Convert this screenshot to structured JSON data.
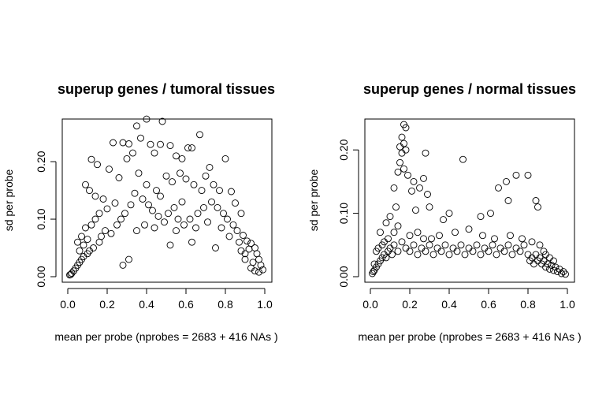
{
  "chart_data": [
    {
      "type": "scatter",
      "title": "superup genes / tumoral tissues",
      "xlabel": "mean per probe (nprobes = 2683 + 416 NAs )",
      "ylabel": "sd per probe",
      "xlim": [
        0,
        1
      ],
      "ylim": [
        0,
        0.27
      ],
      "xticks": [
        0.0,
        0.2,
        0.4,
        0.6,
        0.8,
        1.0
      ],
      "xtick_labels": [
        "0.0",
        "0.2",
        "0.4",
        "0.6",
        "0.8",
        "1.0"
      ],
      "yticks": [
        0.0,
        0.1,
        0.2
      ],
      "ytick_labels": [
        "0.00",
        "0.10",
        "0.20"
      ],
      "marker": "open-circle",
      "grid": false,
      "series": [
        {
          "points": [
            [
              0.4,
              0.274
            ],
            [
              0.48,
              0.27
            ],
            [
              0.35,
              0.262
            ],
            [
              0.67,
              0.247
            ],
            [
              0.37,
              0.241
            ],
            [
              0.61,
              0.224
            ],
            [
              0.63,
              0.224
            ],
            [
              0.23,
              0.233
            ],
            [
              0.28,
              0.233
            ],
            [
              0.31,
              0.231
            ],
            [
              0.42,
              0.23
            ],
            [
              0.52,
              0.228
            ],
            [
              0.47,
              0.23
            ],
            [
              0.8,
              0.205
            ],
            [
              0.12,
              0.204
            ],
            [
              0.15,
              0.195
            ],
            [
              0.55,
              0.21
            ],
            [
              0.44,
              0.215
            ],
            [
              0.3,
              0.205
            ],
            [
              0.72,
              0.19
            ],
            [
              0.58,
              0.205
            ],
            [
              0.33,
              0.215
            ],
            [
              0.21,
              0.187
            ],
            [
              0.26,
              0.172
            ],
            [
              0.09,
              0.16
            ],
            [
              0.11,
              0.15
            ],
            [
              0.14,
              0.14
            ],
            [
              0.18,
              0.135
            ],
            [
              0.24,
              0.128
            ],
            [
              0.2,
              0.118
            ],
            [
              0.36,
              0.18
            ],
            [
              0.4,
              0.16
            ],
            [
              0.45,
              0.15
            ],
            [
              0.5,
              0.175
            ],
            [
              0.53,
              0.165
            ],
            [
              0.57,
              0.18
            ],
            [
              0.6,
              0.17
            ],
            [
              0.64,
              0.16
            ],
            [
              0.68,
              0.15
            ],
            [
              0.7,
              0.175
            ],
            [
              0.74,
              0.16
            ],
            [
              0.77,
              0.15
            ],
            [
              0.83,
              0.148
            ],
            [
              0.85,
              0.128
            ],
            [
              0.88,
              0.11
            ],
            [
              0.86,
              0.08
            ],
            [
              0.89,
              0.072
            ],
            [
              0.91,
              0.062
            ],
            [
              0.93,
              0.058
            ],
            [
              0.95,
              0.05
            ],
            [
              0.96,
              0.04
            ],
            [
              0.97,
              0.03
            ],
            [
              0.98,
              0.02
            ],
            [
              0.99,
              0.012
            ],
            [
              0.92,
              0.048
            ],
            [
              0.9,
              0.04
            ],
            [
              0.94,
              0.025
            ],
            [
              0.87,
              0.06
            ],
            [
              0.84,
              0.09
            ],
            [
              0.81,
              0.1
            ],
            [
              0.79,
              0.11
            ],
            [
              0.76,
              0.12
            ],
            [
              0.73,
              0.13
            ],
            [
              0.69,
              0.12
            ],
            [
              0.66,
              0.11
            ],
            [
              0.62,
              0.1
            ],
            [
              0.59,
              0.09
            ],
            [
              0.56,
              0.1
            ],
            [
              0.54,
              0.12
            ],
            [
              0.51,
              0.11
            ],
            [
              0.49,
              0.095
            ],
            [
              0.46,
              0.105
            ],
            [
              0.43,
              0.115
            ],
            [
              0.41,
              0.125
            ],
            [
              0.38,
              0.135
            ],
            [
              0.34,
              0.145
            ],
            [
              0.32,
              0.125
            ],
            [
              0.29,
              0.11
            ],
            [
              0.27,
              0.1
            ],
            [
              0.25,
              0.09
            ],
            [
              0.22,
              0.075
            ],
            [
              0.19,
              0.08
            ],
            [
              0.17,
              0.07
            ],
            [
              0.16,
              0.06
            ],
            [
              0.13,
              0.05
            ],
            [
              0.11,
              0.045
            ],
            [
              0.1,
              0.04
            ],
            [
              0.08,
              0.035
            ],
            [
              0.07,
              0.03
            ],
            [
              0.06,
              0.025
            ],
            [
              0.05,
              0.02
            ],
            [
              0.04,
              0.015
            ],
            [
              0.03,
              0.01
            ],
            [
              0.02,
              0.006
            ],
            [
              0.015,
              0.004
            ],
            [
              0.01,
              0.003
            ],
            [
              0.05,
              0.06
            ],
            [
              0.07,
              0.07
            ],
            [
              0.09,
              0.085
            ],
            [
              0.06,
              0.045
            ],
            [
              0.08,
              0.055
            ],
            [
              0.1,
              0.065
            ],
            [
              0.12,
              0.09
            ],
            [
              0.14,
              0.1
            ],
            [
              0.16,
              0.11
            ],
            [
              0.28,
              0.02
            ],
            [
              0.31,
              0.03
            ],
            [
              0.52,
              0.055
            ],
            [
              0.63,
              0.06
            ],
            [
              0.75,
              0.05
            ],
            [
              0.58,
              0.13
            ],
            [
              0.47,
              0.14
            ],
            [
              0.39,
              0.09
            ],
            [
              0.35,
              0.08
            ],
            [
              0.44,
              0.085
            ],
            [
              0.55,
              0.08
            ],
            [
              0.65,
              0.085
            ],
            [
              0.71,
              0.095
            ],
            [
              0.78,
              0.085
            ],
            [
              0.82,
              0.07
            ],
            [
              0.88,
              0.045
            ],
            [
              0.9,
              0.03
            ],
            [
              0.93,
              0.015
            ],
            [
              0.95,
              0.01
            ],
            [
              0.97,
              0.008
            ]
          ]
        }
      ]
    },
    {
      "type": "scatter",
      "title": "superup genes / normal tissues",
      "xlabel": "mean per probe (nprobes = 2683 + 416 NAs )",
      "ylabel": "sd per probe",
      "xlim": [
        0,
        1
      ],
      "ylim": [
        0,
        0.245
      ],
      "xticks": [
        0.0,
        0.2,
        0.4,
        0.6,
        0.8,
        1.0
      ],
      "xtick_labels": [
        "0.0",
        "0.2",
        "0.4",
        "0.6",
        "0.8",
        "1.0"
      ],
      "yticks": [
        0.0,
        0.1,
        0.2
      ],
      "ytick_labels": [
        "0.00",
        "0.10",
        "0.20"
      ],
      "marker": "open-circle",
      "grid": false,
      "series": [
        {
          "points": [
            [
              0.17,
              0.24
            ],
            [
              0.18,
              0.235
            ],
            [
              0.16,
              0.22
            ],
            [
              0.17,
              0.21
            ],
            [
              0.15,
              0.205
            ],
            [
              0.18,
              0.2
            ],
            [
              0.16,
              0.195
            ],
            [
              0.28,
              0.195
            ],
            [
              0.47,
              0.185
            ],
            [
              0.15,
              0.18
            ],
            [
              0.17,
              0.17
            ],
            [
              0.14,
              0.165
            ],
            [
              0.19,
              0.16
            ],
            [
              0.27,
              0.155
            ],
            [
              0.22,
              0.15
            ],
            [
              0.12,
              0.14
            ],
            [
              0.21,
              0.135
            ],
            [
              0.25,
              0.14
            ],
            [
              0.29,
              0.13
            ],
            [
              0.65,
              0.14
            ],
            [
              0.69,
              0.15
            ],
            [
              0.74,
              0.16
            ],
            [
              0.8,
              0.16
            ],
            [
              0.84,
              0.12
            ],
            [
              0.85,
              0.11
            ],
            [
              0.7,
              0.12
            ],
            [
              0.61,
              0.1
            ],
            [
              0.56,
              0.095
            ],
            [
              0.4,
              0.1
            ],
            [
              0.37,
              0.09
            ],
            [
              0.3,
              0.11
            ],
            [
              0.23,
              0.105
            ],
            [
              0.13,
              0.11
            ],
            [
              0.1,
              0.095
            ],
            [
              0.08,
              0.085
            ],
            [
              0.05,
              0.07
            ],
            [
              0.03,
              0.04
            ],
            [
              0.02,
              0.02
            ],
            [
              0.01,
              0.005
            ],
            [
              0.015,
              0.008
            ],
            [
              0.02,
              0.01
            ],
            [
              0.03,
              0.015
            ],
            [
              0.04,
              0.02
            ],
            [
              0.05,
              0.025
            ],
            [
              0.06,
              0.03
            ],
            [
              0.07,
              0.035
            ],
            [
              0.08,
              0.03
            ],
            [
              0.09,
              0.04
            ],
            [
              0.1,
              0.045
            ],
            [
              0.11,
              0.035
            ],
            [
              0.12,
              0.05
            ],
            [
              0.14,
              0.04
            ],
            [
              0.16,
              0.055
            ],
            [
              0.18,
              0.045
            ],
            [
              0.2,
              0.04
            ],
            [
              0.22,
              0.05
            ],
            [
              0.24,
              0.035
            ],
            [
              0.26,
              0.045
            ],
            [
              0.28,
              0.04
            ],
            [
              0.3,
              0.05
            ],
            [
              0.32,
              0.035
            ],
            [
              0.34,
              0.045
            ],
            [
              0.36,
              0.04
            ],
            [
              0.38,
              0.05
            ],
            [
              0.4,
              0.035
            ],
            [
              0.42,
              0.045
            ],
            [
              0.44,
              0.04
            ],
            [
              0.46,
              0.05
            ],
            [
              0.48,
              0.035
            ],
            [
              0.5,
              0.045
            ],
            [
              0.52,
              0.04
            ],
            [
              0.54,
              0.05
            ],
            [
              0.56,
              0.035
            ],
            [
              0.58,
              0.045
            ],
            [
              0.6,
              0.04
            ],
            [
              0.62,
              0.05
            ],
            [
              0.64,
              0.035
            ],
            [
              0.66,
              0.045
            ],
            [
              0.68,
              0.04
            ],
            [
              0.7,
              0.05
            ],
            [
              0.72,
              0.035
            ],
            [
              0.74,
              0.045
            ],
            [
              0.76,
              0.04
            ],
            [
              0.78,
              0.05
            ],
            [
              0.8,
              0.035
            ],
            [
              0.82,
              0.03
            ],
            [
              0.84,
              0.035
            ],
            [
              0.86,
              0.03
            ],
            [
              0.88,
              0.025
            ],
            [
              0.9,
              0.02
            ],
            [
              0.92,
              0.018
            ],
            [
              0.94,
              0.015
            ],
            [
              0.96,
              0.012
            ],
            [
              0.98,
              0.008
            ],
            [
              0.99,
              0.004
            ],
            [
              0.97,
              0.005
            ],
            [
              0.95,
              0.008
            ],
            [
              0.93,
              0.01
            ],
            [
              0.91,
              0.012
            ],
            [
              0.89,
              0.015
            ],
            [
              0.87,
              0.02
            ],
            [
              0.85,
              0.025
            ],
            [
              0.83,
              0.02
            ],
            [
              0.81,
              0.025
            ],
            [
              0.31,
              0.06
            ],
            [
              0.35,
              0.065
            ],
            [
              0.43,
              0.07
            ],
            [
              0.5,
              0.075
            ],
            [
              0.57,
              0.065
            ],
            [
              0.63,
              0.06
            ],
            [
              0.71,
              0.065
            ],
            [
              0.77,
              0.06
            ],
            [
              0.82,
              0.055
            ],
            [
              0.86,
              0.05
            ],
            [
              0.88,
              0.04
            ],
            [
              0.89,
              0.035
            ],
            [
              0.91,
              0.03
            ],
            [
              0.93,
              0.025
            ],
            [
              0.12,
              0.07
            ],
            [
              0.14,
              0.08
            ],
            [
              0.09,
              0.06
            ],
            [
              0.07,
              0.055
            ],
            [
              0.06,
              0.05
            ],
            [
              0.04,
              0.045
            ],
            [
              0.2,
              0.065
            ],
            [
              0.24,
              0.07
            ],
            [
              0.27,
              0.06
            ]
          ]
        }
      ]
    }
  ]
}
